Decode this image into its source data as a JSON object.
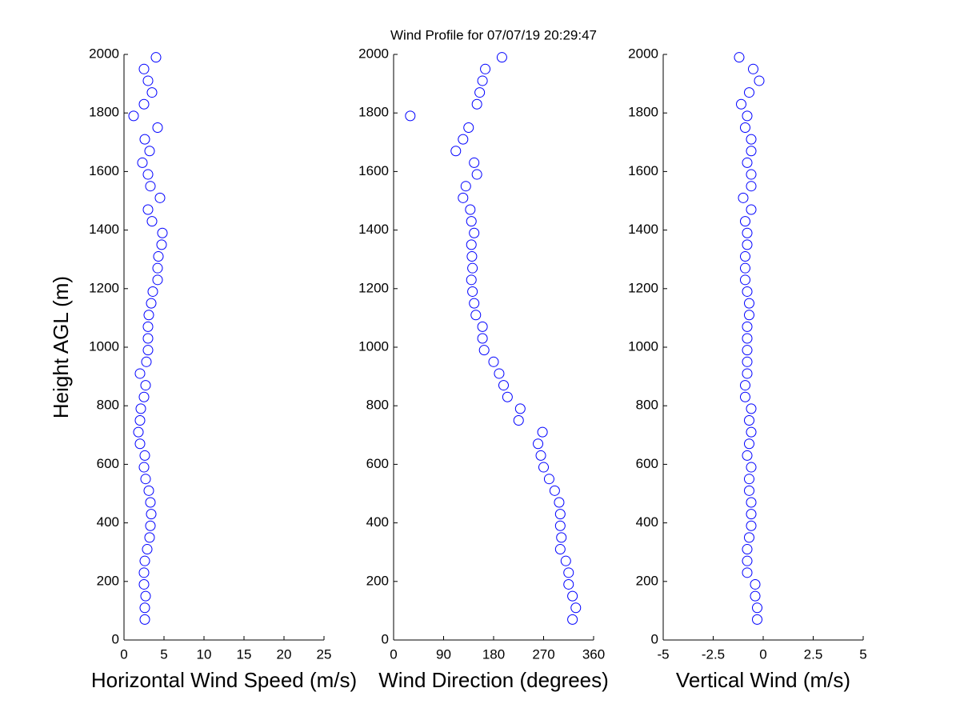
{
  "chart_data": [
    {
      "type": "scatter",
      "title": "Wind Profile for  07/07/19 20:29:47",
      "xlabel": "Horizontal Wind Speed (m/s)",
      "ylabel": "Height AGL (m)",
      "xlim": [
        0,
        25
      ],
      "xticks": [
        0,
        5,
        10,
        15,
        20,
        25
      ],
      "ylim": [
        0,
        2000
      ],
      "yticks": [
        0,
        200,
        400,
        600,
        800,
        1000,
        1200,
        1400,
        1600,
        1800,
        2000
      ],
      "series": [
        {
          "color": "#0000ff",
          "x": [
            2.6,
            2.6,
            2.7,
            2.5,
            2.5,
            2.6,
            2.9,
            3.2,
            3.3,
            3.4,
            3.3,
            3.1,
            2.7,
            2.5,
            2.6,
            2.0,
            1.8,
            2.0,
            2.1,
            2.5,
            2.7,
            2.0,
            2.8,
            3.0,
            3.0,
            3.0,
            3.1,
            3.4,
            3.6,
            4.2,
            4.2,
            4.3,
            4.7,
            4.8,
            3.5,
            3.0,
            4.5,
            3.3,
            3.0,
            2.3,
            3.2,
            2.6,
            4.2,
            1.2,
            2.5,
            3.5,
            3.0,
            2.5,
            4.0
          ],
          "values": [
            70,
            110,
            150,
            190,
            230,
            270,
            310,
            350,
            390,
            430,
            470,
            510,
            550,
            590,
            630,
            670,
            710,
            750,
            790,
            830,
            870,
            910,
            950,
            990,
            1030,
            1070,
            1110,
            1150,
            1190,
            1230,
            1270,
            1310,
            1350,
            1390,
            1430,
            1470,
            1510,
            1550,
            1590,
            1630,
            1670,
            1710,
            1750,
            1790,
            1830,
            1870,
            1910,
            1950,
            1990
          ]
        }
      ]
    },
    {
      "type": "scatter",
      "xlabel": "Wind Direction (degrees)",
      "xlim": [
        0,
        360
      ],
      "xticks": [
        0,
        90,
        180,
        270,
        360
      ],
      "ylim": [
        0,
        2000
      ],
      "yticks": [
        0,
        200,
        400,
        600,
        800,
        1000,
        1200,
        1400,
        1600,
        1800,
        2000
      ],
      "series": [
        {
          "color": "#0000ff",
          "x": [
            322,
            328,
            322,
            315,
            315,
            310,
            300,
            302,
            300,
            300,
            298,
            290,
            280,
            270,
            265,
            260,
            268,
            225,
            228,
            205,
            198,
            190,
            180,
            163,
            160,
            160,
            148,
            145,
            142,
            140,
            142,
            141,
            140,
            145,
            140,
            138,
            125,
            130,
            150,
            145,
            112,
            125,
            135,
            30,
            150,
            155,
            160,
            165,
            195
          ],
          "values": [
            70,
            110,
            150,
            190,
            230,
            270,
            310,
            350,
            390,
            430,
            470,
            510,
            550,
            590,
            630,
            670,
            710,
            750,
            790,
            830,
            870,
            910,
            950,
            990,
            1030,
            1070,
            1110,
            1150,
            1190,
            1230,
            1270,
            1310,
            1350,
            1390,
            1430,
            1470,
            1510,
            1550,
            1590,
            1630,
            1670,
            1710,
            1750,
            1790,
            1830,
            1870,
            1910,
            1950,
            1990
          ]
        }
      ]
    },
    {
      "type": "scatter",
      "xlabel": "Vertical Wind (m/s)",
      "xlim": [
        -5,
        5
      ],
      "xticks": [
        -5,
        -2.5,
        0,
        2.5,
        5
      ],
      "ylim": [
        0,
        2000
      ],
      "yticks": [
        0,
        200,
        400,
        600,
        800,
        1000,
        1200,
        1400,
        1600,
        1800,
        2000
      ],
      "series": [
        {
          "color": "#0000ff",
          "x": [
            -0.3,
            -0.3,
            -0.4,
            -0.4,
            -0.8,
            -0.8,
            -0.8,
            -0.7,
            -0.6,
            -0.6,
            -0.6,
            -0.7,
            -0.7,
            -0.6,
            -0.8,
            -0.7,
            -0.6,
            -0.7,
            -0.6,
            -0.9,
            -0.9,
            -0.8,
            -0.8,
            -0.8,
            -0.8,
            -0.8,
            -0.7,
            -0.7,
            -0.8,
            -0.9,
            -0.9,
            -0.9,
            -0.8,
            -0.8,
            -0.9,
            -0.6,
            -1.0,
            -0.6,
            -0.6,
            -0.8,
            -0.6,
            -0.6,
            -0.9,
            -0.8,
            -1.1,
            -0.7,
            -0.2,
            -0.5,
            -1.2
          ],
          "values": [
            70,
            110,
            150,
            190,
            230,
            270,
            310,
            350,
            390,
            430,
            470,
            510,
            550,
            590,
            630,
            670,
            710,
            750,
            790,
            830,
            870,
            910,
            950,
            990,
            1030,
            1070,
            1110,
            1150,
            1190,
            1230,
            1270,
            1310,
            1350,
            1390,
            1430,
            1470,
            1510,
            1550,
            1590,
            1630,
            1670,
            1710,
            1750,
            1790,
            1830,
            1870,
            1910,
            1950,
            1990
          ]
        }
      ]
    }
  ]
}
